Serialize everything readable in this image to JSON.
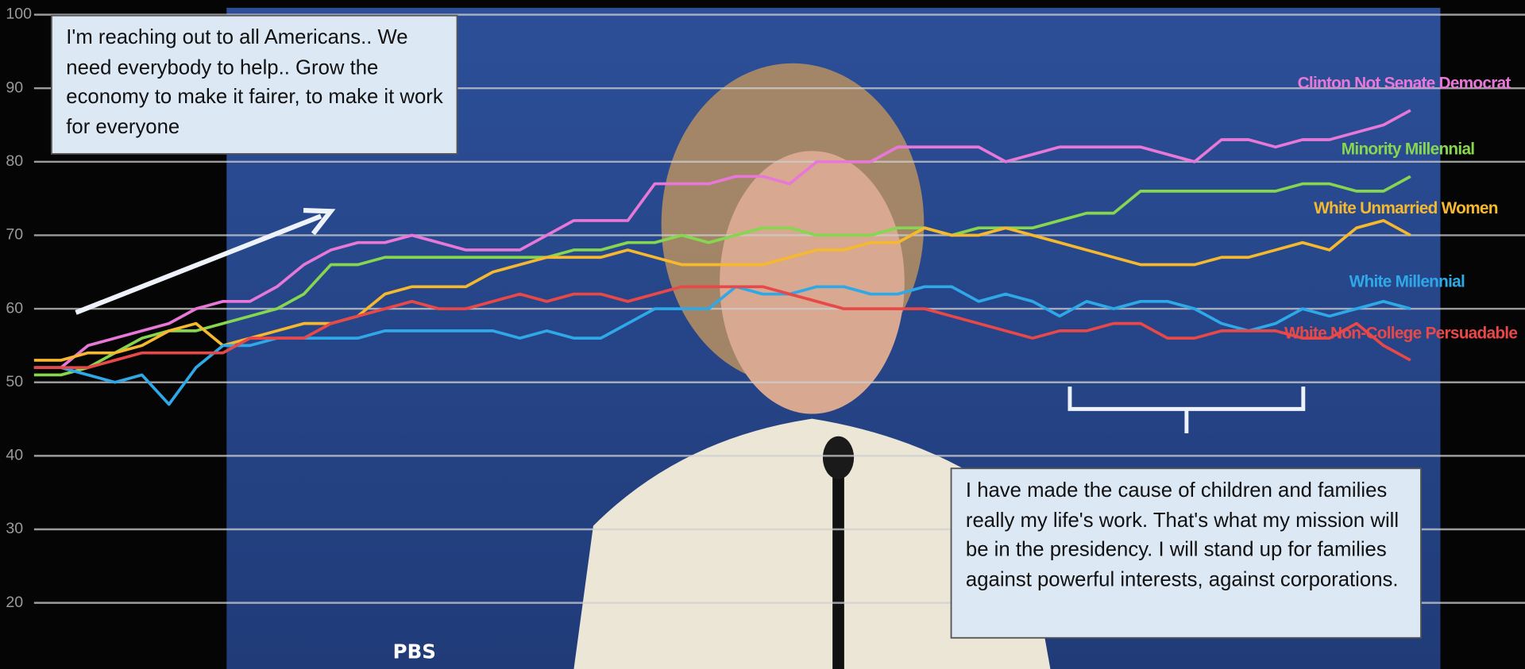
{
  "chart_data": {
    "type": "line",
    "series": [
      {
        "name": "Clinton Not Senate Democrat",
        "color": "#e878d8",
        "values": [
          52,
          52,
          55,
          56,
          57,
          58,
          60,
          61,
          61,
          63,
          66,
          68,
          69,
          69,
          70,
          69,
          68,
          68,
          68,
          70,
          72,
          72,
          72,
          77,
          77,
          77,
          78,
          78,
          77,
          80,
          80,
          80,
          82,
          82,
          82,
          82,
          80,
          81,
          82,
          82,
          82,
          82,
          81,
          80,
          83,
          83,
          82,
          83,
          83,
          84,
          85,
          87
        ]
      },
      {
        "name": "Minority Millennial",
        "color": "#86d650",
        "values": [
          51,
          51,
          52,
          54,
          56,
          57,
          57,
          58,
          59,
          60,
          62,
          66,
          66,
          67,
          67,
          67,
          67,
          67,
          67,
          67,
          68,
          68,
          69,
          69,
          70,
          69,
          70,
          71,
          71,
          70,
          70,
          70,
          71,
          71,
          70,
          71,
          71,
          71,
          72,
          73,
          73,
          76,
          76,
          76,
          76,
          76,
          76,
          77,
          77,
          76,
          76,
          78
        ]
      },
      {
        "name": "White Unmarried Women",
        "color": "#f5b82e",
        "values": [
          53,
          53,
          54,
          54,
          55,
          57,
          58,
          55,
          56,
          57,
          58,
          58,
          59,
          62,
          63,
          63,
          63,
          65,
          66,
          67,
          67,
          67,
          68,
          67,
          66,
          66,
          66,
          66,
          67,
          68,
          68,
          69,
          69,
          71,
          70,
          70,
          71,
          70,
          69,
          68,
          67,
          66,
          66,
          66,
          67,
          67,
          68,
          69,
          68,
          71,
          72,
          70
        ]
      },
      {
        "name": "White Millennial",
        "color": "#2fa8e8",
        "values": [
          52,
          52,
          51,
          50,
          51,
          47,
          52,
          55,
          55,
          56,
          56,
          56,
          56,
          57,
          57,
          57,
          57,
          57,
          56,
          57,
          56,
          56,
          58,
          60,
          60,
          60,
          63,
          62,
          62,
          63,
          63,
          62,
          62,
          63,
          63,
          61,
          62,
          61,
          59,
          61,
          60,
          61,
          61,
          60,
          58,
          57,
          58,
          60,
          59,
          60,
          61,
          60
        ]
      },
      {
        "name": "White Non-College Persuadable",
        "color": "#e84848",
        "values": [
          52,
          52,
          52,
          53,
          54,
          54,
          54,
          54,
          56,
          56,
          56,
          58,
          59,
          60,
          61,
          60,
          60,
          61,
          62,
          61,
          62,
          62,
          61,
          62,
          63,
          63,
          63,
          63,
          62,
          61,
          60,
          60,
          60,
          60,
          59,
          58,
          57,
          56,
          57,
          57,
          58,
          58,
          56,
          56,
          57,
          57,
          57,
          56,
          56,
          58,
          55,
          53
        ]
      }
    ],
    "ylim": [
      11,
      102
    ],
    "yticks": [
      20,
      30,
      40,
      50,
      60,
      70,
      80,
      90,
      100
    ],
    "grid": true,
    "annotations": [
      "I'm reaching out to all Americans.. We need everybody to help.. Grow the economy to make it fairer, to make it work for everyone",
      "I have made the cause of children and families really my life's work. That's what my mission will be in the presidency. I will stand up for families against powerful interests, against corporations."
    ]
  }
}
